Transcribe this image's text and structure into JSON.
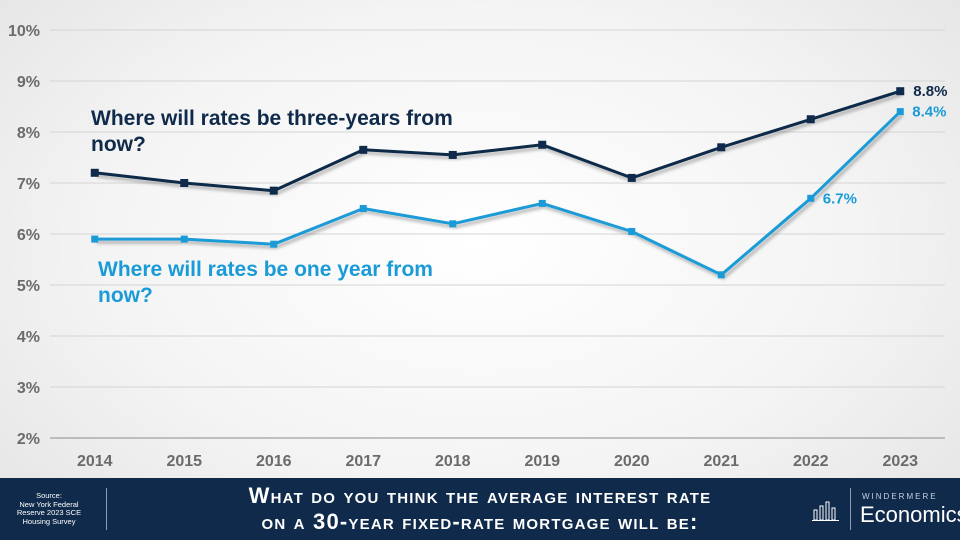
{
  "chart_data": {
    "type": "line",
    "categories": [
      "2014",
      "2015",
      "2016",
      "2017",
      "2018",
      "2019",
      "2020",
      "2021",
      "2022",
      "2023"
    ],
    "ylim": [
      2,
      10
    ],
    "yticks": [
      "2%",
      "3%",
      "4%",
      "5%",
      "6%",
      "7%",
      "8%",
      "9%",
      "10%"
    ],
    "grid": true,
    "series": [
      {
        "name": "Where will rates be three-years from now?",
        "label_lines": [
          "Where will rates be three-years from",
          "now?"
        ],
        "color": "#0f2a4a",
        "values": [
          7.2,
          7.0,
          6.85,
          7.65,
          7.55,
          7.75,
          7.1,
          7.7,
          8.25,
          8.8
        ],
        "end_label": "8.8%"
      },
      {
        "name": "Where will rates be one year from now?",
        "label_lines": [
          "Where will rates be one year from",
          "now?"
        ],
        "color": "#1a9bd7",
        "values": [
          5.9,
          5.9,
          5.8,
          6.5,
          6.2,
          6.6,
          6.05,
          5.2,
          6.7,
          8.4
        ],
        "point_labels": [
          {
            "index": 8,
            "text": "6.7%"
          },
          {
            "index": 9,
            "text": "8.4%"
          }
        ]
      }
    ]
  },
  "footer": {
    "source_lines": [
      "Source:",
      "New York Federal",
      "Reserve 2023 SCE",
      "Housing Survey"
    ],
    "title_lines": [
      "What do you think the average interest rate",
      "on a 30-year fixed-rate mortgage will be:"
    ],
    "brand_top": "WINDERMERE",
    "brand_bottom": "Economics"
  }
}
